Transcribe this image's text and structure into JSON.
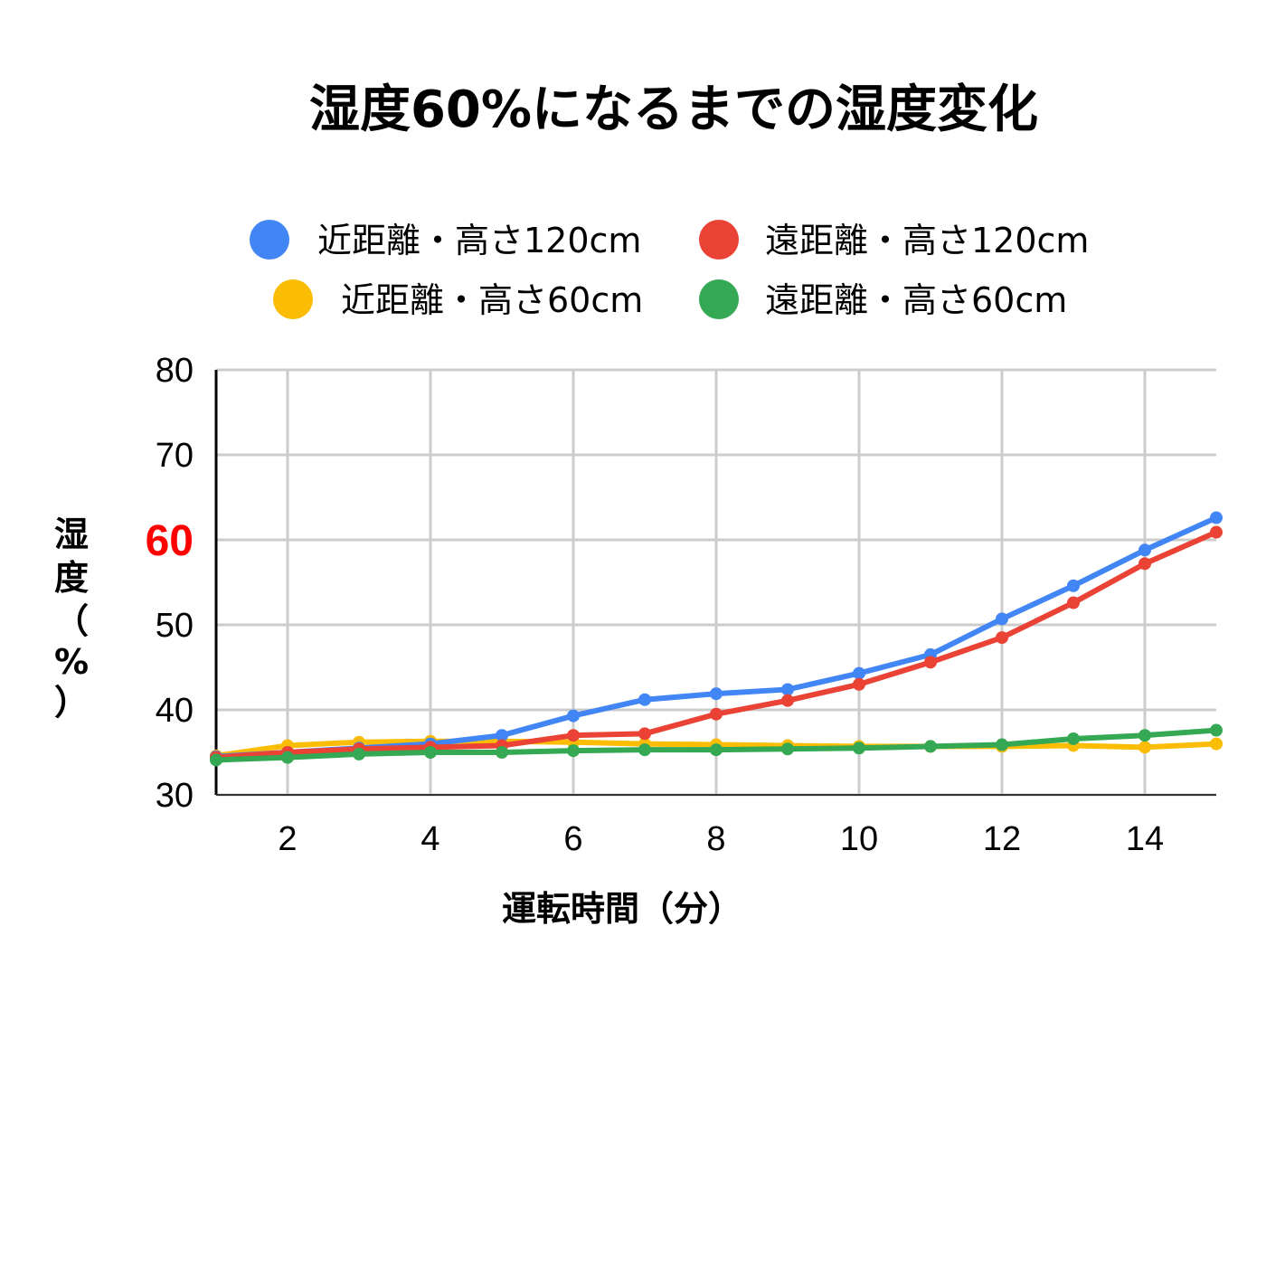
{
  "chart_data": {
    "type": "line",
    "title": "湿度60%になるまでの湿度変化",
    "xlabel": "運転時間（分）",
    "ylabel_chars": [
      "湿",
      "度",
      "（",
      "%",
      "）"
    ],
    "xlim": [
      1,
      15
    ],
    "ylim": [
      30,
      80
    ],
    "xticks": [
      "2",
      "4",
      "6",
      "8",
      "10",
      "12",
      "14"
    ],
    "yticks": [
      "30",
      "40",
      "50",
      "70",
      "80"
    ],
    "highlight_ytick": "60",
    "highlight_color": "#ff0000",
    "grid": true,
    "legend_position": "top",
    "x": [
      1,
      2,
      3,
      4,
      5,
      6,
      7,
      8,
      9,
      10,
      11,
      12,
      13,
      14,
      15
    ],
    "series": [
      {
        "name": "近距離・高さ120cm",
        "color": "#4285f4",
        "values": [
          34.5,
          35.0,
          35.5,
          36.0,
          37.0,
          39.3,
          41.2,
          41.9,
          42.4,
          44.3,
          46.5,
          50.7,
          54.6,
          58.8,
          62.6
        ]
      },
      {
        "name": "遠距離・高さ120cm",
        "color": "#ea4335",
        "values": [
          34.4,
          35.0,
          35.4,
          35.6,
          35.8,
          37.0,
          37.2,
          39.5,
          41.1,
          43.0,
          45.6,
          48.5,
          52.6,
          57.2,
          60.9
        ]
      },
      {
        "name": "近距離・高さ60cm",
        "color": "#fbbc04",
        "values": [
          34.6,
          35.8,
          36.2,
          36.3,
          36.3,
          36.2,
          36.0,
          35.9,
          35.8,
          35.7,
          35.7,
          35.7,
          35.8,
          35.6,
          36.0
        ]
      },
      {
        "name": "遠距離・高さ60cm",
        "color": "#34a853",
        "values": [
          34.1,
          34.4,
          34.8,
          35.0,
          35.0,
          35.2,
          35.3,
          35.3,
          35.4,
          35.5,
          35.7,
          35.9,
          36.6,
          37.0,
          37.6
        ]
      }
    ]
  }
}
